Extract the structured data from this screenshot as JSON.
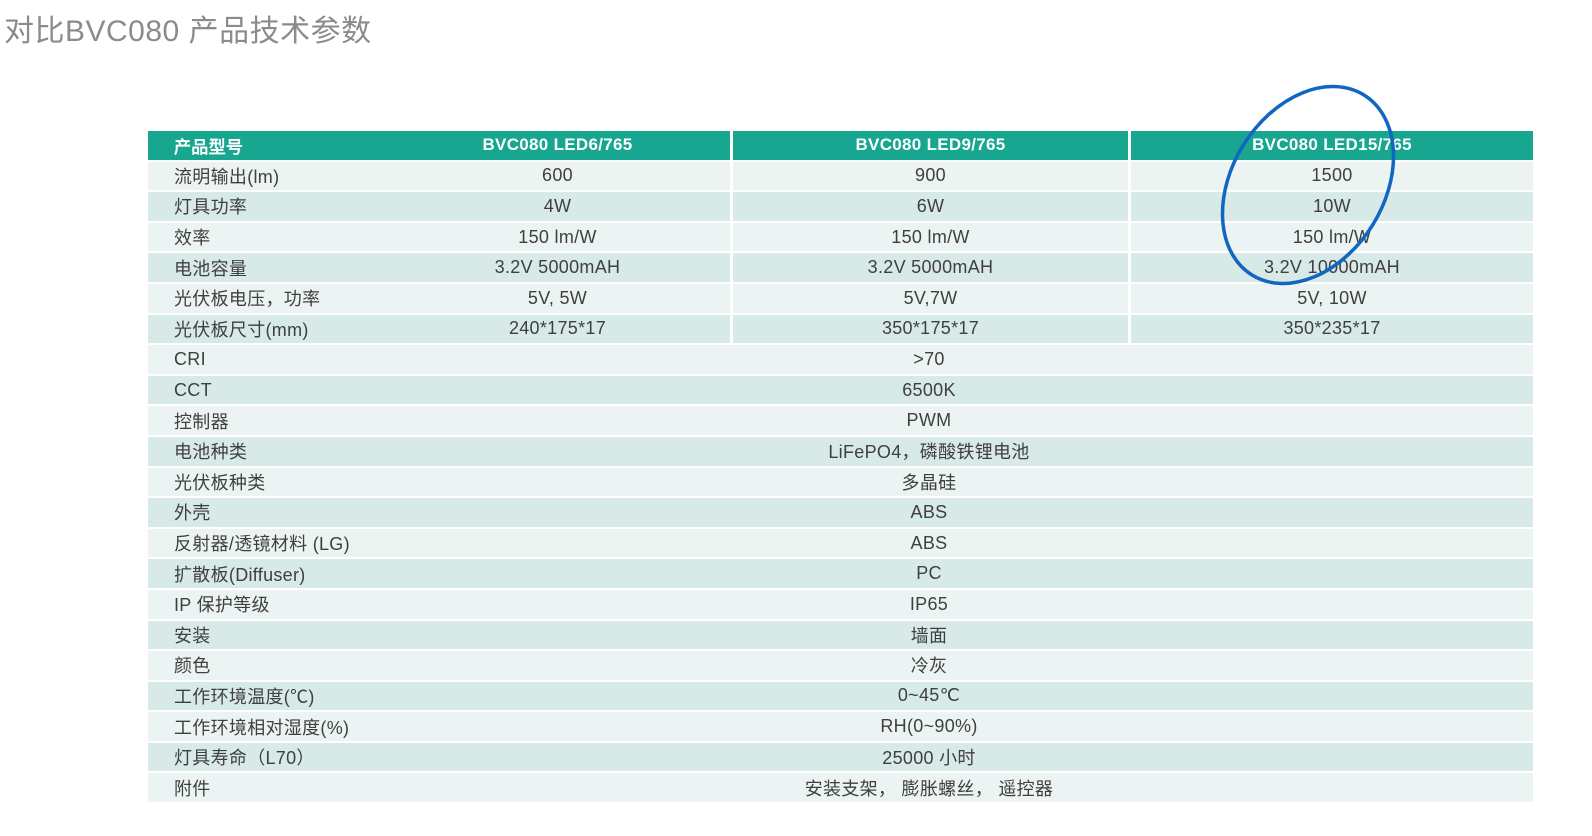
{
  "page": {
    "title": "对比BVC080 产品技术参数"
  },
  "colors": {
    "header_bg": "#17A68F",
    "row_light": "#ECF4F3",
    "row_teal": "#D7EAE8",
    "body_text": "#3F3F3F",
    "header_text": "#FFFFFF",
    "title_text": "#8B8B8B",
    "annotation_blue": "#1166C2"
  },
  "table": {
    "header": [
      "产品型号",
      "BVC080 LED6/765",
      "BVC080 LED9/765",
      "BVC080 LED15/765"
    ],
    "rows": [
      {
        "label": "流明输出(lm)",
        "merged": false,
        "values": [
          "600",
          "900",
          "1500"
        ]
      },
      {
        "label": "灯具功率",
        "merged": false,
        "values": [
          "4W",
          "6W",
          "10W"
        ]
      },
      {
        "label": "效率",
        "merged": false,
        "values": [
          "150 lm/W",
          "150 lm/W",
          "150 lm/W"
        ]
      },
      {
        "label": "电池容量",
        "merged": false,
        "values": [
          "3.2V 5000mAH",
          "3.2V 5000mAH",
          "3.2V 10000mAH"
        ]
      },
      {
        "label": "光伏板电压，功率",
        "merged": false,
        "values": [
          "5V, 5W",
          "5V,7W",
          "5V, 10W"
        ]
      },
      {
        "label": "光伏板尺寸(mm)",
        "merged": false,
        "values": [
          "240*175*17",
          "350*175*17",
          "350*235*17"
        ]
      },
      {
        "label": "CRI",
        "merged": true,
        "values": [
          ">70"
        ]
      },
      {
        "label": "CCT",
        "merged": true,
        "values": [
          "6500K"
        ]
      },
      {
        "label": "控制器",
        "merged": true,
        "values": [
          "PWM"
        ]
      },
      {
        "label": "电池种类",
        "merged": true,
        "values": [
          "LiFePO4，磷酸铁锂电池"
        ]
      },
      {
        "label": "光伏板种类",
        "merged": true,
        "values": [
          "多晶硅"
        ]
      },
      {
        "label": "外壳",
        "merged": true,
        "values": [
          "ABS"
        ]
      },
      {
        "label": "反射器/透镜材料 (LG)",
        "merged": true,
        "values": [
          "ABS"
        ]
      },
      {
        "label": "扩散板(Diffuser)",
        "merged": true,
        "values": [
          "PC"
        ]
      },
      {
        "label": "IP 保护等级",
        "merged": true,
        "values": [
          "IP65"
        ]
      },
      {
        "label": "安装",
        "merged": true,
        "values": [
          "墙面"
        ]
      },
      {
        "label": "颜色",
        "merged": true,
        "values": [
          "冷灰"
        ]
      },
      {
        "label": "工作环境温度(℃)",
        "merged": true,
        "values": [
          "0~45℃"
        ]
      },
      {
        "label": "工作环境相对湿度(%)",
        "merged": true,
        "values": [
          "RH(0~90%)"
        ]
      },
      {
        "label": "灯具寿命（L70）",
        "merged": true,
        "values": [
          "25000 小时"
        ]
      },
      {
        "label": "附件",
        "merged": true,
        "values": [
          "安装支架， 膨胀螺丝， 遥控器"
        ]
      }
    ]
  },
  "annotation": {
    "shape": "hand-drawn ellipse",
    "target": "BVC080 LED15/765 column header and top values",
    "color": "#1166C2"
  }
}
